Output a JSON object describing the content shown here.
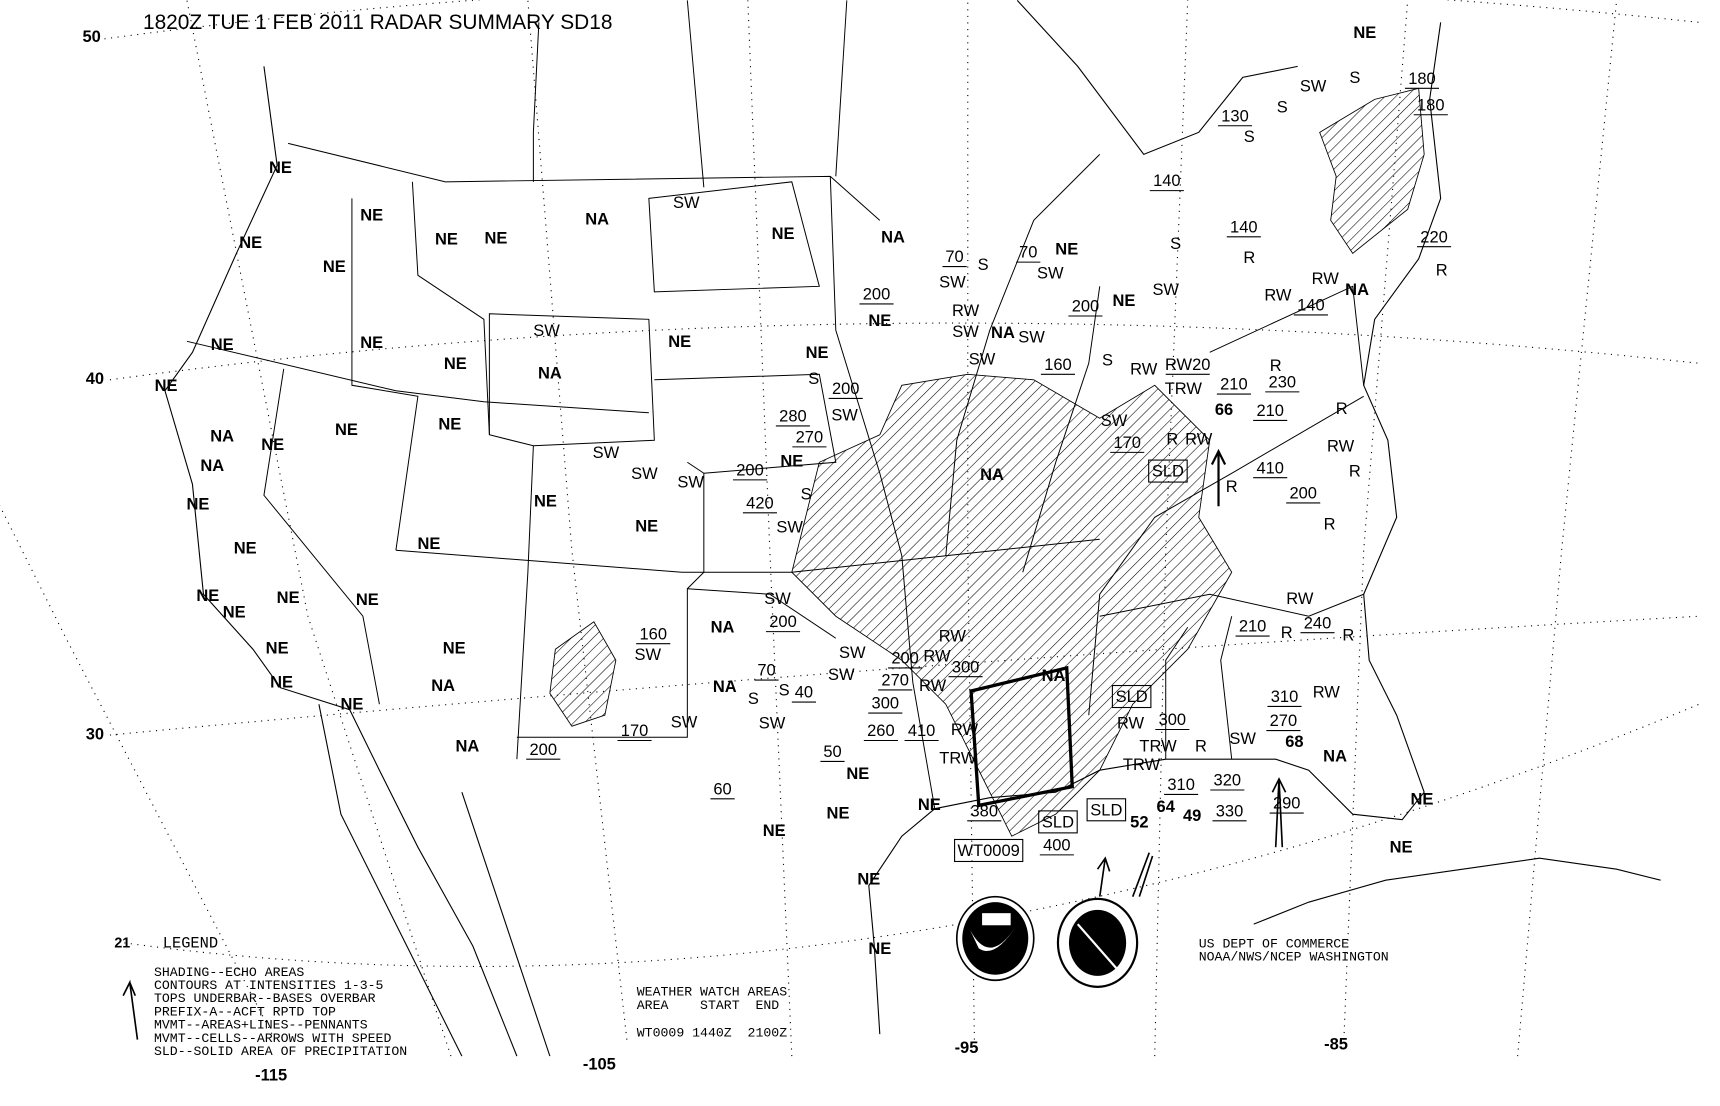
{
  "title": "1820Z TUE  1 FEB 2011 RADAR SUMMARY SD18",
  "grid_labels": {
    "lat": [
      "50",
      "40",
      "30",
      "21"
    ],
    "lon": [
      "-115",
      "-105",
      "-95",
      "-85"
    ]
  },
  "legend": {
    "heading": "LEGEND",
    "lines": [
      "SHADING--ECHO AREAS",
      "CONTOURS AT INTENSITIES 1-3-5",
      "TOPS UNDERBAR--BASES OVERBAR",
      "PREFIX-A--ACFT RPTD TOP",
      "MVMT--AREAS+LINES--PENNANTS",
      "MVMT--CELLS--ARROWS WITH SPEED",
      "SLD--SOLID AREA OF PRECIPITATION"
    ]
  },
  "watch_areas": {
    "heading": "WEATHER WATCH AREAS",
    "columns": "AREA    START  END",
    "rows": [
      "WT0009 1440Z  2100Z"
    ]
  },
  "credit": {
    "line1": "US DEPT OF COMMERCE",
    "line2": "NOAA/NWS/NCEP WASHINGTON"
  },
  "logos": [
    "NOAA",
    "NATIONAL WEATHER SERVICE"
  ],
  "map_labels": [
    "NE",
    "NE",
    "NE",
    "NE",
    "NE",
    "NE",
    "NA",
    "SW",
    "NE",
    "NA",
    "200",
    "NE",
    "70",
    "S",
    "SW",
    "70",
    "NE",
    "SW",
    "200",
    "NE",
    "SW",
    "RW",
    "SW",
    "NA",
    "SW",
    "SW",
    "160",
    "S",
    "130",
    "S",
    "140",
    "140",
    "S",
    "R",
    "SW",
    "S",
    "S",
    "NE",
    "180",
    "180",
    "220",
    "R",
    "NA",
    "RW",
    "140",
    "RW",
    "R",
    "RW",
    "RW20",
    "TRW",
    "210",
    "230",
    "66",
    "210",
    "SW",
    "170",
    "R",
    "RW",
    "SLD",
    "R",
    "410",
    "R",
    "RW",
    "R",
    "200",
    "R",
    "RW",
    "240",
    "210",
    "R",
    "R",
    "NE",
    "S",
    "200",
    "SW",
    "280",
    "270",
    "NE",
    "200",
    "420",
    "SW",
    "S",
    "NA",
    "NE",
    "NE",
    "NE",
    "NE",
    "SW",
    "NA",
    "NE",
    "NE",
    "NE",
    "NA",
    "NE",
    "NA",
    "NE",
    "NE",
    "NE",
    "NE",
    "NE",
    "NE",
    "NE",
    "NE",
    "NE",
    "SW",
    "SW",
    "SW",
    "NE",
    "NE",
    "NE",
    "NE",
    "NA",
    "NA",
    "200",
    "160",
    "SW",
    "170",
    "SW",
    "NA",
    "SW",
    "200",
    "NA",
    "S",
    "70",
    "SW",
    "S",
    "40",
    "50",
    "NE",
    "NE",
    "60",
    "NE",
    "SW",
    "SW",
    "200",
    "RW",
    "270",
    "RW",
    "300",
    "RW",
    "300",
    "260",
    "410",
    "RW",
    "TRW",
    "NE",
    "380",
    "SLD",
    "400",
    "WT0009",
    "SLD",
    "52",
    "64",
    "49",
    "330",
    "320",
    "TRW",
    "310",
    "300",
    "TRW",
    "RW",
    "R",
    "SW",
    "310",
    "RW",
    "270",
    "68",
    "NA",
    "290",
    "NE",
    "NE",
    "NE",
    "NE",
    "NA",
    "SLD"
  ],
  "colors": {
    "ink": "#000000",
    "background": "#ffffff"
  }
}
